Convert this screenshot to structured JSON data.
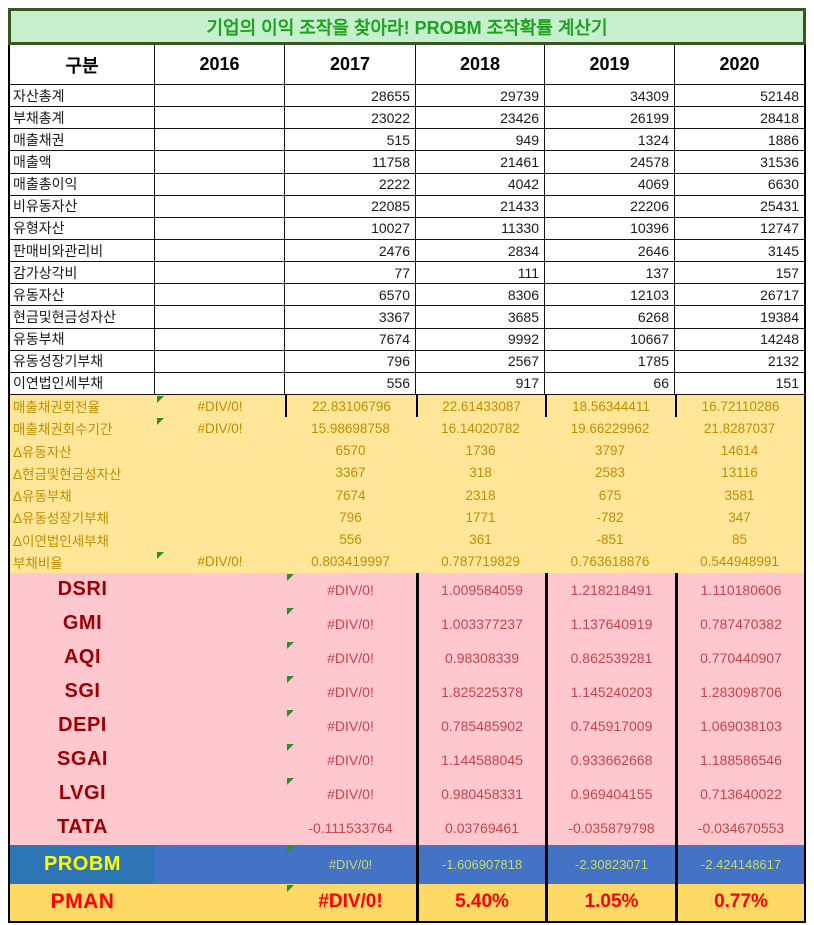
{
  "title": "기업의 이익 조작을 찾아라! PROBM 조작확률 계산기",
  "columns": [
    "구분",
    "2016",
    "2017",
    "2018",
    "2019",
    "2020"
  ],
  "error_value": "#DIV/0!",
  "colors": {
    "title_text": "#21a121",
    "title_bg": "#c6efce",
    "title_border": "#375623",
    "derived_bg": "#ffe699",
    "derived_text": "#bf8f00",
    "indices_bg": "#ffc7ce",
    "indices_label_text": "#9c0006",
    "indices_value_text": "#c4454e",
    "probm_row_bg": "#4472c4",
    "probm_label_bg": "#2e75b6",
    "probm_label_text": "#ffff00",
    "probm_value_text": "#c6da6b",
    "pman_bg": "#ffd966",
    "pman_text": "#ff0000",
    "error_indicator": "#2e8b2e"
  },
  "sections": {
    "inputs": {
      "rows": [
        {
          "label": "자산총계",
          "values": [
            "",
            "28655",
            "29739",
            "34309",
            "52148"
          ]
        },
        {
          "label": "부채총계",
          "values": [
            "",
            "23022",
            "23426",
            "26199",
            "28418"
          ]
        },
        {
          "label": "매출채권",
          "values": [
            "",
            "515",
            "949",
            "1324",
            "1886"
          ]
        },
        {
          "label": "매출액",
          "values": [
            "",
            "11758",
            "21461",
            "24578",
            "31536"
          ]
        },
        {
          "label": "매출총이익",
          "values": [
            "",
            "2222",
            "4042",
            "4069",
            "6630"
          ]
        },
        {
          "label": "비유동자산",
          "values": [
            "",
            "22085",
            "21433",
            "22206",
            "25431"
          ]
        },
        {
          "label": "유형자산",
          "values": [
            "",
            "10027",
            "11330",
            "10396",
            "12747"
          ]
        },
        {
          "label": "판매비와관리비",
          "values": [
            "",
            "2476",
            "2834",
            "2646",
            "3145"
          ]
        },
        {
          "label": "감가상각비",
          "values": [
            "",
            "77",
            "111",
            "137",
            "157"
          ]
        },
        {
          "label": "유동자산",
          "values": [
            "",
            "6570",
            "8306",
            "12103",
            "26717"
          ]
        },
        {
          "label": "현금및현금성자산",
          "values": [
            "",
            "3367",
            "3685",
            "6268",
            "19384"
          ]
        },
        {
          "label": "유동부채",
          "values": [
            "",
            "7674",
            "9992",
            "10667",
            "14248"
          ]
        },
        {
          "label": "유동성장기부채",
          "values": [
            "",
            "796",
            "2567",
            "1785",
            "2132"
          ]
        },
        {
          "label": "이연법인세부채",
          "values": [
            "",
            "556",
            "917",
            "66",
            "151"
          ]
        }
      ]
    },
    "derived": {
      "rows": [
        {
          "label": "매출채권회전율",
          "values": [
            "#DIV/0!",
            "22.83106796",
            "22.61433087",
            "18.56344411",
            "16.72110286"
          ],
          "triangle": 1
        },
        {
          "label": "매출채권회수기간",
          "values": [
            "#DIV/0!",
            "15.98698758",
            "16.14020782",
            "19.66229962",
            "21.8287037"
          ],
          "triangle": 1
        },
        {
          "label": "Δ유동자산",
          "values": [
            "",
            "6570",
            "1736",
            "3797",
            "14614"
          ],
          "triangle": null
        },
        {
          "label": "Δ현금및현금성자산",
          "values": [
            "",
            "3367",
            "318",
            "2583",
            "13116"
          ],
          "triangle": null
        },
        {
          "label": "Δ유동부채",
          "values": [
            "",
            "7674",
            "2318",
            "675",
            "3581"
          ],
          "triangle": null
        },
        {
          "label": "Δ유동성장기부채",
          "values": [
            "",
            "796",
            "1771",
            "-782",
            "347"
          ],
          "triangle": null
        },
        {
          "label": "Δ이연법인세부채",
          "values": [
            "",
            "556",
            "361",
            "-851",
            "85"
          ],
          "triangle": null
        },
        {
          "label": "부채비율",
          "values": [
            "#DIV/0!",
            "0.803419997",
            "0.787719829",
            "0.763618876",
            "0.544948991"
          ],
          "triangle": 1
        }
      ]
    },
    "indices": {
      "rows": [
        {
          "label": "DSRI",
          "values": [
            "",
            "#DIV/0!",
            "1.009584059",
            "1.218218491",
            "1.110180606"
          ],
          "triangle": 2
        },
        {
          "label": "GMI",
          "values": [
            "",
            "#DIV/0!",
            "1.003377237",
            "1.137640919",
            "0.787470382"
          ],
          "triangle": 2
        },
        {
          "label": "AQI",
          "values": [
            "",
            "#DIV/0!",
            "0.98308339",
            "0.862539281",
            "0.770440907"
          ],
          "triangle": 2
        },
        {
          "label": "SGI",
          "values": [
            "",
            "#DIV/0!",
            "1.825225378",
            "1.145240203",
            "1.283098706"
          ],
          "triangle": 2
        },
        {
          "label": "DEPI",
          "values": [
            "",
            "#DIV/0!",
            "0.785485902",
            "0.745917009",
            "1.069038103"
          ],
          "triangle": 2
        },
        {
          "label": "SGAI",
          "values": [
            "",
            "#DIV/0!",
            "1.144588045",
            "0.933662668",
            "1.188586546"
          ],
          "triangle": 2
        },
        {
          "label": "LVGI",
          "values": [
            "",
            "#DIV/0!",
            "0.980458331",
            "0.969404155",
            "0.713640022"
          ],
          "triangle": 2
        },
        {
          "label": "TATA",
          "values": [
            "",
            "-0.111533764",
            "0.03769461",
            "-0.035879798",
            "-0.034670553"
          ],
          "triangle": null
        }
      ]
    },
    "probm": {
      "label": "PROBM",
      "values": [
        "",
        "#DIV/0!",
        "-1.606907818",
        "-2.30823071",
        "-2.424148617"
      ],
      "triangle": 2
    },
    "pman": {
      "label": "PMAN",
      "values": [
        "",
        "#DIV/0!",
        "5.40%",
        "1.05%",
        "0.77%"
      ],
      "triangle": 2
    }
  }
}
